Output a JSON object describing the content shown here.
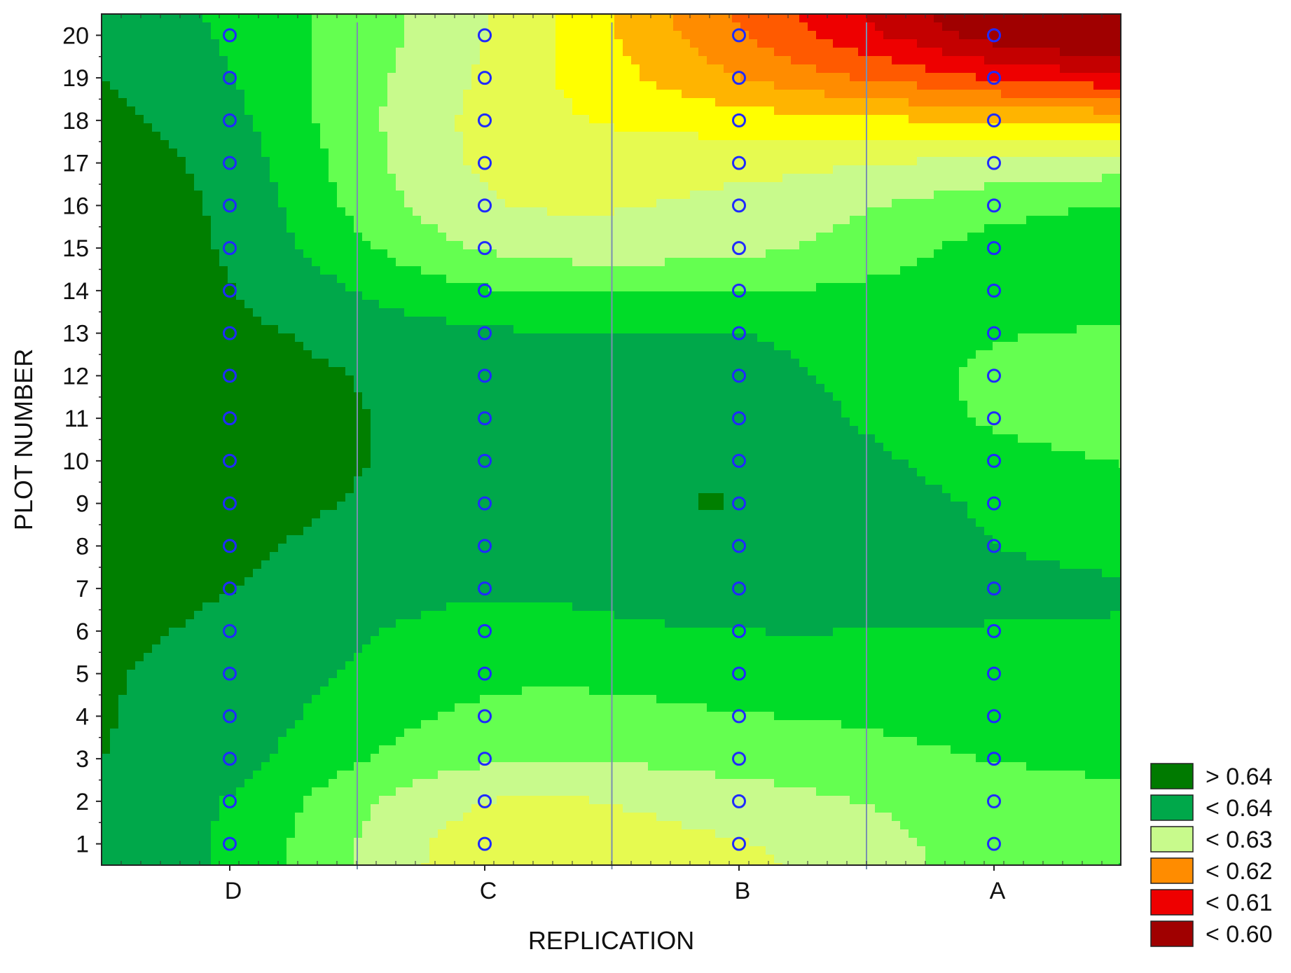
{
  "chart_data": {
    "type": "heatmap",
    "subtype": "filled-contour",
    "title": "",
    "xlabel": "REPLICATION",
    "ylabel": "PLOT NUMBER",
    "x_categories": [
      "D",
      "C",
      "B",
      "A"
    ],
    "y_ticks": [
      1,
      2,
      3,
      4,
      5,
      6,
      7,
      8,
      9,
      10,
      11,
      12,
      13,
      14,
      15,
      16,
      17,
      18,
      19,
      20
    ],
    "ylim": [
      0.5,
      20.5
    ],
    "grid": false,
    "replication_dividers": true,
    "sample_marker": "circle",
    "marker_color": "#1f2bff",
    "legend_position": "bottom-right",
    "legend": [
      {
        "label": "> 0.64",
        "color": "#007a00"
      },
      {
        "label": "< 0.64",
        "color": "#00a84a"
      },
      {
        "label": "< 0.63",
        "color": "#c8fa8c"
      },
      {
        "label": "< 0.62",
        "color": "#ff8c00"
      },
      {
        "label": "< 0.61",
        "color": "#ee0000"
      },
      {
        "label": "< 0.60",
        "color": "#a00000"
      }
    ],
    "level_palette": [
      "#007f00",
      "#00a84a",
      "#00dc28",
      "#64ff50",
      "#c8fa8c",
      "#e6fa50",
      "#ffff00",
      "#ffb400",
      "#ff8c00",
      "#ff5a00",
      "#ee0000",
      "#c40000",
      "#a00000"
    ],
    "columns_values_plot_1_to_20": {
      "D": [
        0.6345,
        0.6348,
        0.6362,
        0.6368,
        0.6372,
        0.6378,
        0.6384,
        0.639,
        0.6395,
        0.6398,
        0.64,
        0.6398,
        0.6392,
        0.6385,
        0.638,
        0.6376,
        0.637,
        0.636,
        0.6352,
        0.6346
      ],
      "C": [
        0.6235,
        0.625,
        0.629,
        0.631,
        0.6325,
        0.6338,
        0.6355,
        0.6362,
        0.6372,
        0.6375,
        0.6373,
        0.637,
        0.6355,
        0.632,
        0.628,
        0.6255,
        0.6245,
        0.624,
        0.6245,
        0.625
      ],
      "B": [
        0.6248,
        0.627,
        0.6295,
        0.6315,
        0.633,
        0.635,
        0.6372,
        0.638,
        0.6383,
        0.638,
        0.6372,
        0.6362,
        0.635,
        0.6315,
        0.6275,
        0.626,
        0.624,
        0.62,
        0.615,
        0.612
      ],
      "A": [
        0.63,
        0.63,
        0.6318,
        0.633,
        0.634,
        0.6348,
        0.6358,
        0.635,
        0.6345,
        0.633,
        0.631,
        0.6308,
        0.632,
        0.6335,
        0.633,
        0.6305,
        0.626,
        0.618,
        0.608,
        0.6
      ]
    }
  }
}
